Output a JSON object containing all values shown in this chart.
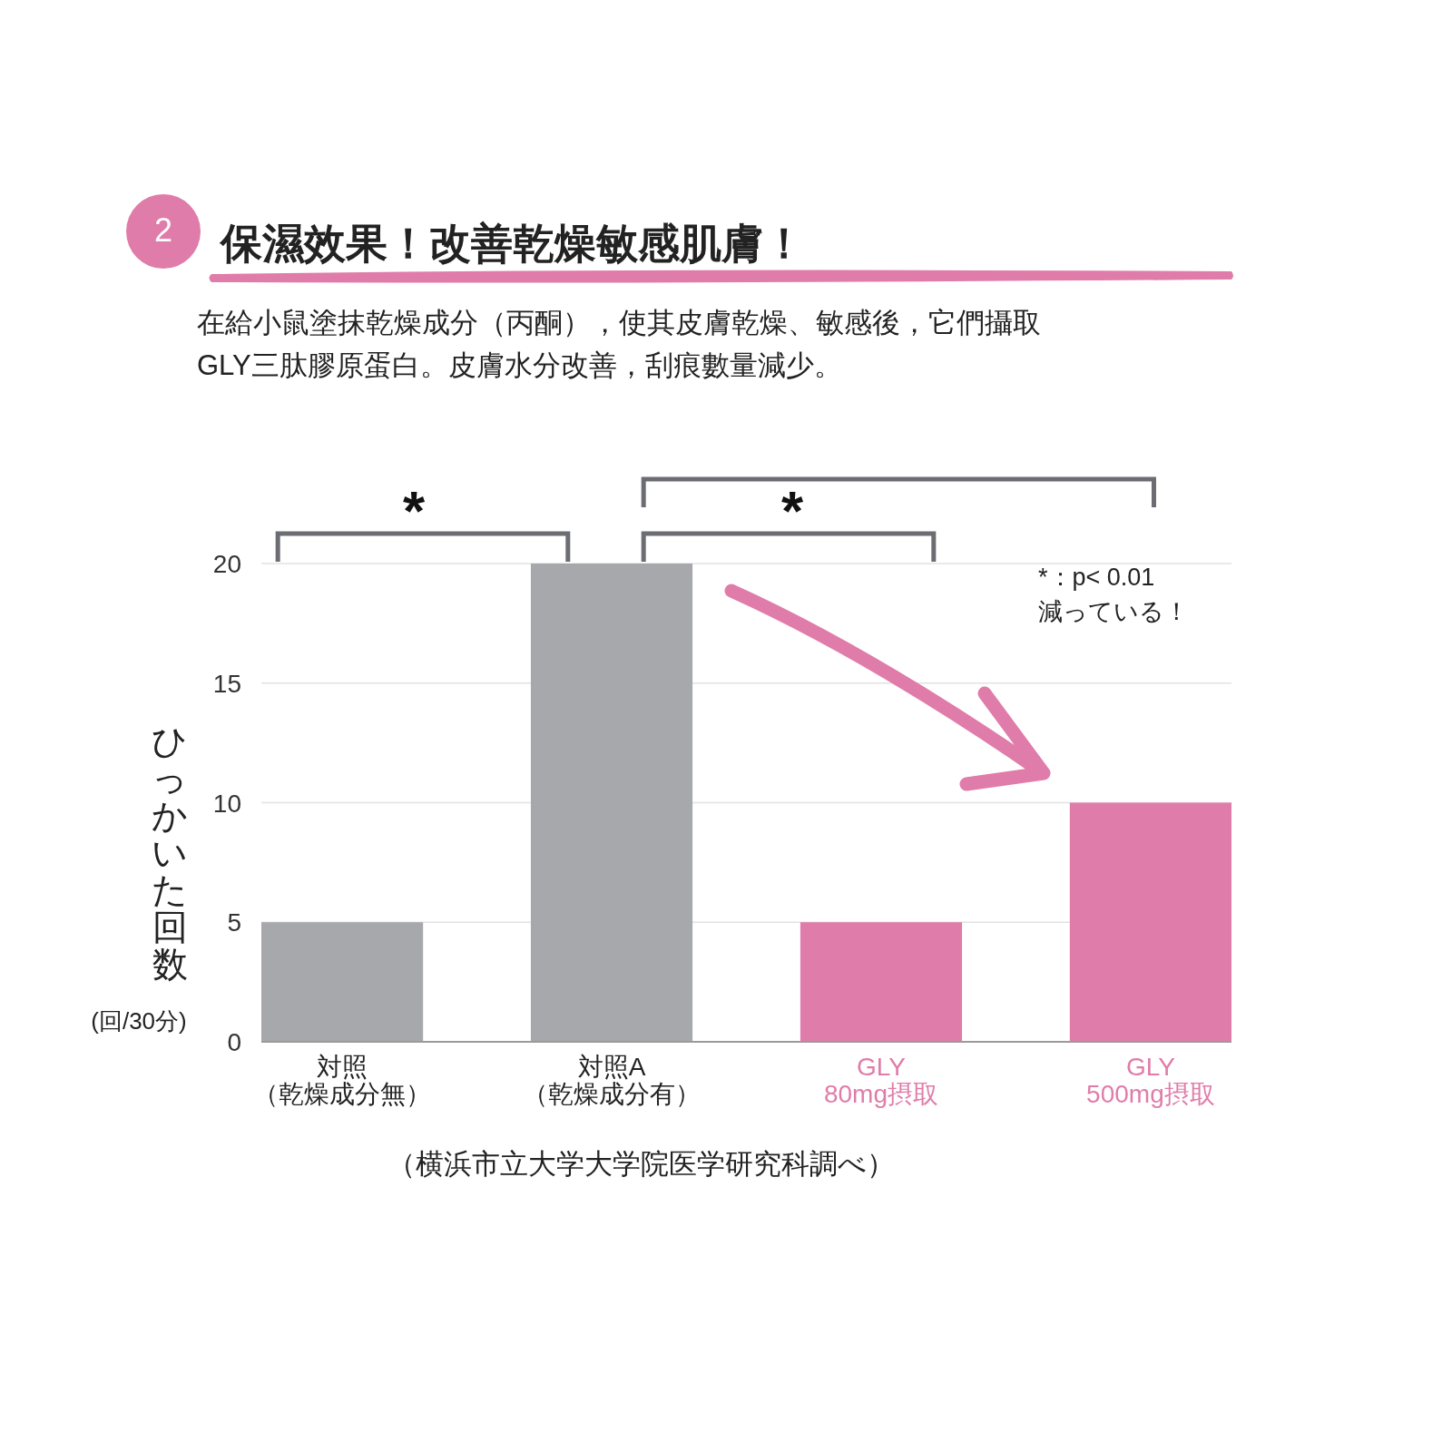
{
  "chart_data": {
    "type": "bar",
    "title": "保濕效果！改善乾燥敏感肌膚！",
    "subtitle": "在給小鼠塗抹乾燥成分（丙酮），使其皮膚乾燥、敏感後，它們攝取GLY三肽膠原蛋白。皮膚水分改善，刮痕數量減少。",
    "ylabel": "ひっかいた回数(回/30分)",
    "categories": [
      "対照（乾燥成分無）",
      "対照A（乾燥成分有）",
      "GLY 80mg摂取",
      "GLY 500mg摂取"
    ],
    "values": [
      5,
      20,
      5,
      10
    ],
    "colors": [
      "#a7a8ac",
      "#a7a8ac",
      "#e07ca9",
      "#e07ca9"
    ],
    "ylim": [
      0,
      20
    ],
    "yticks": [
      0,
      5,
      10,
      15,
      20
    ],
    "grid": "y",
    "annotations": [
      "2",
      "*",
      "*",
      "*：p< 0.01",
      "減っている！",
      "（横浜市立大学大学院医学研究科調べ）"
    ]
  }
}
